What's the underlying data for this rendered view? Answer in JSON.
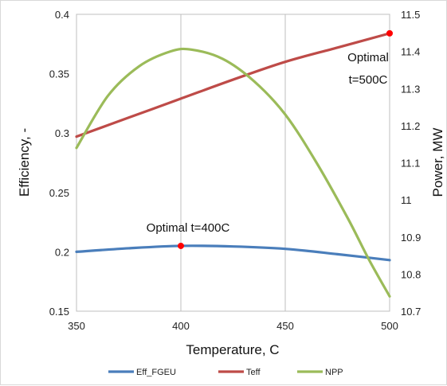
{
  "chart_data": {
    "type": "line",
    "x_axis": {
      "label": "Temperature, C",
      "range": [
        350,
        500
      ],
      "ticks": [
        "350",
        "400",
        "450",
        "500"
      ]
    },
    "y_left": {
      "label": "Efficiency, -",
      "range": [
        0.15,
        0.4
      ],
      "ticks": [
        "0.15",
        "0.2",
        "0.25",
        "0.3",
        "0.35",
        "0.4"
      ]
    },
    "y_right": {
      "label": "Power, MW",
      "range": [
        10.7,
        11.5
      ],
      "ticks": [
        "10.7",
        "10.8",
        "10.9",
        "11",
        "11.1",
        "11.2",
        "11.3",
        "11.4",
        "11.5"
      ]
    },
    "grid": "vertical",
    "legend_position": "bottom",
    "series": [
      {
        "name": "Eff_FGEU",
        "axis": "left",
        "color": "#4a7ebb",
        "x": [
          350,
          375,
          400,
          425,
          450,
          475,
          500
        ],
        "y": [
          0.2,
          0.203,
          0.205,
          0.2045,
          0.2025,
          0.198,
          0.193
        ]
      },
      {
        "name": "Teff",
        "axis": "left",
        "color": "#be4b48",
        "x": [
          350,
          375,
          400,
          425,
          450,
          475,
          500
        ],
        "y": [
          0.297,
          0.313,
          0.329,
          0.345,
          0.36,
          0.372,
          0.384
        ]
      },
      {
        "name": "NPP",
        "axis": "right",
        "color": "#9bbb59",
        "x": [
          350,
          365,
          380,
          395,
          405,
          420,
          435,
          450,
          465,
          480,
          490,
          500
        ],
        "y": [
          11.14,
          11.28,
          11.36,
          11.4,
          11.405,
          11.38,
          11.32,
          11.23,
          11.1,
          10.95,
          10.84,
          10.74
        ]
      }
    ],
    "markers": [
      {
        "series": "Eff_FGEU",
        "x": 400,
        "y": 0.205,
        "color": "#ff0000"
      },
      {
        "series": "Teff",
        "x": 500,
        "y": 0.384,
        "color": "#ff0000"
      }
    ],
    "annotations": [
      {
        "lines": [
          "Optimal t=400C"
        ],
        "near": "Eff_FGEU marker"
      },
      {
        "lines": [
          "Optimal",
          "t=500C"
        ],
        "near": "Teff marker"
      }
    ]
  }
}
